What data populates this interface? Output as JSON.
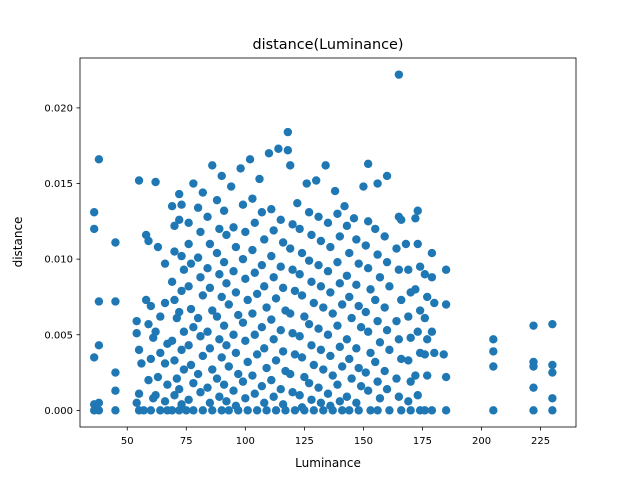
{
  "chart_data": {
    "type": "scatter",
    "title": "distance(Luminance)",
    "xlabel": "Luminance",
    "ylabel": "distance",
    "xlim": [
      30,
      240
    ],
    "ylim": [
      -0.0011,
      0.0233
    ],
    "xticks": [
      50,
      75,
      100,
      125,
      150,
      175,
      200,
      225
    ],
    "yticks": [
      0.0,
      0.005,
      0.01,
      0.015,
      0.02
    ],
    "ytick_labels": [
      "0.000",
      "0.005",
      "0.010",
      "0.015",
      "0.020"
    ],
    "grid": false,
    "legend": "none",
    "marker_color": "#1f77b4",
    "points": [
      [
        36,
        0.0131
      ],
      [
        36,
        0.012
      ],
      [
        36,
        0.0035
      ],
      [
        36,
        0.0004
      ],
      [
        36,
        0.0
      ],
      [
        38,
        0.0166
      ],
      [
        38,
        0.0072
      ],
      [
        38,
        0.0043
      ],
      [
        38,
        0.0005
      ],
      [
        38,
        0.0
      ],
      [
        45,
        0.0111
      ],
      [
        45,
        0.0072
      ],
      [
        45,
        0.0025
      ],
      [
        45,
        0.0013
      ],
      [
        45,
        0.0
      ],
      [
        55,
        0.0152
      ],
      [
        54,
        0.0059
      ],
      [
        54,
        0.0051
      ],
      [
        55,
        0.004
      ],
      [
        56,
        0.0031
      ],
      [
        55,
        0.0011
      ],
      [
        54,
        0.0005
      ],
      [
        55,
        0.0
      ],
      [
        57,
        0.0
      ],
      [
        58,
        0.0116
      ],
      [
        59,
        0.0112
      ],
      [
        58,
        0.0073
      ],
      [
        60,
        0.0069
      ],
      [
        59,
        0.0057
      ],
      [
        61,
        0.0048
      ],
      [
        60,
        0.0034
      ],
      [
        59,
        0.002
      ],
      [
        61,
        0.0008
      ],
      [
        60,
        0.0
      ],
      [
        62,
        0.0151
      ],
      [
        63,
        0.0108
      ],
      [
        64,
        0.0062
      ],
      [
        62,
        0.0052
      ],
      [
        64,
        0.0038
      ],
      [
        63,
        0.0022
      ],
      [
        62,
        0.001
      ],
      [
        64,
        0.0
      ],
      [
        66,
        0.0097
      ],
      [
        66,
        0.0071
      ],
      [
        67,
        0.0044
      ],
      [
        66,
        0.0031
      ],
      [
        67,
        0.0017
      ],
      [
        66,
        0.0006
      ],
      [
        67,
        0.0
      ],
      [
        69,
        0.0135
      ],
      [
        70,
        0.0122
      ],
      [
        70,
        0.0105
      ],
      [
        69,
        0.0085
      ],
      [
        70,
        0.0073
      ],
      [
        71,
        0.0061
      ],
      [
        69,
        0.0046
      ],
      [
        70,
        0.0033
      ],
      [
        71,
        0.0021
      ],
      [
        70,
        0.001
      ],
      [
        69,
        0.0
      ],
      [
        72,
        0.0
      ],
      [
        72,
        0.0143
      ],
      [
        73,
        0.0136
      ],
      [
        72,
        0.0126
      ],
      [
        73,
        0.0102
      ],
      [
        74,
        0.0093
      ],
      [
        73,
        0.0079
      ],
      [
        72,
        0.0065
      ],
      [
        74,
        0.0052
      ],
      [
        73,
        0.004
      ],
      [
        74,
        0.0027
      ],
      [
        72,
        0.0014
      ],
      [
        73,
        0.0004
      ],
      [
        76,
        0.0124
      ],
      [
        76,
        0.011
      ],
      [
        77,
        0.0097
      ],
      [
        76,
        0.0082
      ],
      [
        77,
        0.0067
      ],
      [
        78,
        0.0055
      ],
      [
        76,
        0.0043
      ],
      [
        77,
        0.003
      ],
      [
        78,
        0.0018
      ],
      [
        76,
        0.0007
      ],
      [
        75,
        0.0
      ],
      [
        78,
        0.0
      ],
      [
        78,
        0.015
      ],
      [
        80,
        0.0134
      ],
      [
        81,
        0.0118
      ],
      [
        80,
        0.0101
      ],
      [
        81,
        0.0088
      ],
      [
        82,
        0.0076
      ],
      [
        80,
        0.0061
      ],
      [
        81,
        0.0049
      ],
      [
        82,
        0.0036
      ],
      [
        80,
        0.0024
      ],
      [
        81,
        0.0012
      ],
      [
        82,
        0.0
      ],
      [
        82,
        0.0144
      ],
      [
        84,
        0.0128
      ],
      [
        85,
        0.011
      ],
      [
        84,
        0.0094
      ],
      [
        85,
        0.0081
      ],
      [
        86,
        0.0066
      ],
      [
        84,
        0.0052
      ],
      [
        85,
        0.0041
      ],
      [
        86,
        0.0027
      ],
      [
        84,
        0.0015
      ],
      [
        85,
        0.0005
      ],
      [
        86,
        0.0
      ],
      [
        86,
        0.0162
      ],
      [
        88,
        0.0139
      ],
      [
        89,
        0.012
      ],
      [
        88,
        0.0104
      ],
      [
        89,
        0.009
      ],
      [
        90,
        0.0075
      ],
      [
        88,
        0.0062
      ],
      [
        89,
        0.0047
      ],
      [
        90,
        0.0035
      ],
      [
        88,
        0.0021
      ],
      [
        89,
        0.0009
      ],
      [
        90,
        0.0
      ],
      [
        90,
        0.0155
      ],
      [
        91,
        0.0132
      ],
      [
        92,
        0.0116
      ],
      [
        91,
        0.0098
      ],
      [
        92,
        0.0084
      ],
      [
        93,
        0.007
      ],
      [
        91,
        0.0056
      ],
      [
        92,
        0.0043
      ],
      [
        93,
        0.0029
      ],
      [
        91,
        0.0017
      ],
      [
        92,
        0.0006
      ],
      [
        93,
        0.0
      ],
      [
        94,
        0.0148
      ],
      [
        95,
        0.0121
      ],
      [
        96,
        0.0108
      ],
      [
        95,
        0.0092
      ],
      [
        96,
        0.0078
      ],
      [
        97,
        0.0063
      ],
      [
        95,
        0.005
      ],
      [
        96,
        0.0038
      ],
      [
        97,
        0.0024
      ],
      [
        95,
        0.0013
      ],
      [
        96,
        0.0003
      ],
      [
        97,
        0.0
      ],
      [
        98,
        0.016
      ],
      [
        99,
        0.0136
      ],
      [
        100,
        0.0118
      ],
      [
        99,
        0.01
      ],
      [
        100,
        0.0087
      ],
      [
        101,
        0.0073
      ],
      [
        99,
        0.0058
      ],
      [
        100,
        0.0046
      ],
      [
        101,
        0.0032
      ],
      [
        99,
        0.0019
      ],
      [
        100,
        0.0008
      ],
      [
        101,
        0.0
      ],
      [
        102,
        0.0166
      ],
      [
        103,
        0.014
      ],
      [
        104,
        0.0124
      ],
      [
        103,
        0.0106
      ],
      [
        104,
        0.0091
      ],
      [
        105,
        0.0077
      ],
      [
        103,
        0.0064
      ],
      [
        104,
        0.005
      ],
      [
        105,
        0.0037
      ],
      [
        103,
        0.0023
      ],
      [
        104,
        0.0011
      ],
      [
        105,
        0.0
      ],
      [
        106,
        0.0153
      ],
      [
        107,
        0.0131
      ],
      [
        108,
        0.0113
      ],
      [
        107,
        0.0096
      ],
      [
        108,
        0.0082
      ],
      [
        109,
        0.0068
      ],
      [
        107,
        0.0055
      ],
      [
        108,
        0.0041
      ],
      [
        109,
        0.0028
      ],
      [
        107,
        0.0016
      ],
      [
        108,
        0.0005
      ],
      [
        109,
        0.0
      ],
      [
        110,
        0.017
      ],
      [
        111,
        0.0133
      ],
      [
        112,
        0.0119
      ],
      [
        111,
        0.0102
      ],
      [
        112,
        0.0088
      ],
      [
        113,
        0.0074
      ],
      [
        111,
        0.006
      ],
      [
        112,
        0.0047
      ],
      [
        113,
        0.0033
      ],
      [
        111,
        0.002
      ],
      [
        112,
        0.0009
      ],
      [
        113,
        0.0
      ],
      [
        114,
        0.0173
      ],
      [
        115,
        0.0126
      ],
      [
        116,
        0.0111
      ],
      [
        115,
        0.0095
      ],
      [
        116,
        0.0081
      ],
      [
        117,
        0.0066
      ],
      [
        115,
        0.0053
      ],
      [
        116,
        0.0039
      ],
      [
        117,
        0.0026
      ],
      [
        115,
        0.0014
      ],
      [
        116,
        0.0004
      ],
      [
        117,
        0.0
      ],
      [
        118,
        0.0184
      ],
      [
        118,
        0.0172
      ],
      [
        119,
        0.0162
      ],
      [
        120,
        0.0123
      ],
      [
        119,
        0.0107
      ],
      [
        120,
        0.0093
      ],
      [
        121,
        0.0079
      ],
      [
        119,
        0.0064
      ],
      [
        120,
        0.0051
      ],
      [
        121,
        0.0037
      ],
      [
        119,
        0.0024
      ],
      [
        120,
        0.0012
      ],
      [
        121,
        0.0
      ],
      [
        122,
        0.0137
      ],
      [
        123,
        0.012
      ],
      [
        124,
        0.0104
      ],
      [
        123,
        0.009
      ],
      [
        124,
        0.0076
      ],
      [
        125,
        0.0062
      ],
      [
        123,
        0.0049
      ],
      [
        124,
        0.0035
      ],
      [
        125,
        0.0022
      ],
      [
        123,
        0.001
      ],
      [
        124,
        0.0002
      ],
      [
        125,
        0.0
      ],
      [
        126,
        0.015
      ],
      [
        127,
        0.0131
      ],
      [
        128,
        0.0116
      ],
      [
        127,
        0.0099
      ],
      [
        128,
        0.0085
      ],
      [
        129,
        0.0071
      ],
      [
        127,
        0.0057
      ],
      [
        128,
        0.0043
      ],
      [
        129,
        0.003
      ],
      [
        127,
        0.0018
      ],
      [
        128,
        0.0007
      ],
      [
        129,
        0.0
      ],
      [
        130,
        0.0152
      ],
      [
        131,
        0.0128
      ],
      [
        132,
        0.0112
      ],
      [
        131,
        0.0096
      ],
      [
        132,
        0.0082
      ],
      [
        133,
        0.0068
      ],
      [
        131,
        0.0054
      ],
      [
        132,
        0.004
      ],
      [
        133,
        0.0027
      ],
      [
        131,
        0.0015
      ],
      [
        132,
        0.0005
      ],
      [
        133,
        0.0
      ],
      [
        134,
        0.0162
      ],
      [
        135,
        0.0124
      ],
      [
        136,
        0.0108
      ],
      [
        135,
        0.0092
      ],
      [
        136,
        0.0078
      ],
      [
        137,
        0.0064
      ],
      [
        135,
        0.005
      ],
      [
        136,
        0.0036
      ],
      [
        137,
        0.0023
      ],
      [
        135,
        0.0011
      ],
      [
        136,
        0.0003
      ],
      [
        137,
        0.0
      ],
      [
        138,
        0.0145
      ],
      [
        139,
        0.013
      ],
      [
        140,
        0.0115
      ],
      [
        139,
        0.0098
      ],
      [
        140,
        0.0084
      ],
      [
        141,
        0.007
      ],
      [
        139,
        0.0056
      ],
      [
        140,
        0.0042
      ],
      [
        141,
        0.0029
      ],
      [
        139,
        0.0017
      ],
      [
        140,
        0.0006
      ],
      [
        141,
        0.0
      ],
      [
        142,
        0.0135
      ],
      [
        143,
        0.0122
      ],
      [
        144,
        0.0104
      ],
      [
        143,
        0.0089
      ],
      [
        144,
        0.0075
      ],
      [
        145,
        0.0061
      ],
      [
        143,
        0.0047
      ],
      [
        144,
        0.0034
      ],
      [
        145,
        0.0021
      ],
      [
        143,
        0.0009
      ],
      [
        144,
        0.0
      ],
      [
        146,
        0.0127
      ],
      [
        147,
        0.0113
      ],
      [
        148,
        0.0097
      ],
      [
        147,
        0.0083
      ],
      [
        148,
        0.0069
      ],
      [
        149,
        0.0055
      ],
      [
        147,
        0.0041
      ],
      [
        148,
        0.0028
      ],
      [
        149,
        0.0016
      ],
      [
        147,
        0.0005
      ],
      [
        148,
        0.0
      ],
      [
        150,
        0.0148
      ],
      [
        152,
        0.0163
      ],
      [
        152,
        0.0125
      ],
      [
        151,
        0.0109
      ],
      [
        152,
        0.0094
      ],
      [
        153,
        0.008
      ],
      [
        151,
        0.0065
      ],
      [
        152,
        0.0052
      ],
      [
        153,
        0.0038
      ],
      [
        151,
        0.0025
      ],
      [
        152,
        0.0013
      ],
      [
        153,
        0.0
      ],
      [
        156,
        0.015
      ],
      [
        155,
        0.012
      ],
      [
        156,
        0.0103
      ],
      [
        157,
        0.0088
      ],
      [
        155,
        0.0073
      ],
      [
        156,
        0.0059
      ],
      [
        157,
        0.0045
      ],
      [
        155,
        0.0032
      ],
      [
        156,
        0.0019
      ],
      [
        157,
        0.0008
      ],
      [
        156,
        0.0
      ],
      [
        160,
        0.0155
      ],
      [
        159,
        0.0115
      ],
      [
        160,
        0.0098
      ],
      [
        161,
        0.0082
      ],
      [
        159,
        0.0068
      ],
      [
        160,
        0.0053
      ],
      [
        161,
        0.004
      ],
      [
        159,
        0.0026
      ],
      [
        160,
        0.0014
      ],
      [
        161,
        0.0
      ],
      [
        165,
        0.0222
      ],
      [
        165,
        0.0128
      ],
      [
        166,
        0.0126
      ],
      [
        164,
        0.0107
      ],
      [
        165,
        0.0093
      ],
      [
        166,
        0.0073
      ],
      [
        164,
        0.0059
      ],
      [
        165,
        0.0047
      ],
      [
        166,
        0.0034
      ],
      [
        164,
        0.0021
      ],
      [
        165,
        0.0009
      ],
      [
        166,
        0.0
      ],
      [
        168,
        0.011
      ],
      [
        169,
        0.0093
      ],
      [
        170,
        0.0078
      ],
      [
        169,
        0.0062
      ],
      [
        170,
        0.0048
      ],
      [
        169,
        0.0033
      ],
      [
        170,
        0.0019
      ],
      [
        169,
        0.0006
      ],
      [
        170,
        0.0
      ],
      [
        173,
        0.0132
      ],
      [
        172,
        0.0127
      ],
      [
        173,
        0.011
      ],
      [
        174,
        0.0095
      ],
      [
        172,
        0.008
      ],
      [
        174,
        0.0066
      ],
      [
        173,
        0.0052
      ],
      [
        174,
        0.0038
      ],
      [
        172,
        0.0023
      ],
      [
        173,
        0.001
      ],
      [
        174,
        0.0
      ],
      [
        176,
        0.009
      ],
      [
        177,
        0.0075
      ],
      [
        176,
        0.0061
      ],
      [
        177,
        0.0047
      ],
      [
        176,
        0.0037
      ],
      [
        177,
        0.0023
      ],
      [
        176,
        0.0
      ],
      [
        179,
        0.0104
      ],
      [
        179,
        0.0088
      ],
      [
        180,
        0.0071
      ],
      [
        179,
        0.0052
      ],
      [
        180,
        0.0038
      ],
      [
        179,
        0.0
      ],
      [
        185,
        0.0093
      ],
      [
        185,
        0.007
      ],
      [
        184,
        0.0037
      ],
      [
        185,
        0.0022
      ],
      [
        185,
        0.0
      ],
      [
        205,
        0.0047
      ],
      [
        205,
        0.0039
      ],
      [
        205,
        0.0029
      ],
      [
        205,
        0.0
      ],
      [
        222,
        0.0056
      ],
      [
        222,
        0.0032
      ],
      [
        222,
        0.0029
      ],
      [
        222,
        0.0015
      ],
      [
        222,
        0.0
      ],
      [
        230,
        0.0057
      ],
      [
        230,
        0.003
      ],
      [
        230,
        0.0025
      ],
      [
        230,
        0.0008
      ],
      [
        230,
        0.0
      ]
    ]
  }
}
